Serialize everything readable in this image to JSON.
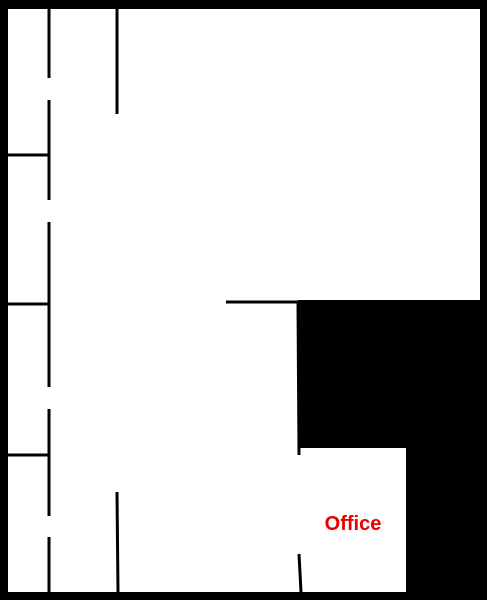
{
  "floorplan": {
    "rooms": [
      {
        "id": "office",
        "label": "Office"
      }
    ]
  },
  "colors": {
    "wall": "#000000",
    "floor": "#ffffff",
    "label": "#e60000"
  }
}
